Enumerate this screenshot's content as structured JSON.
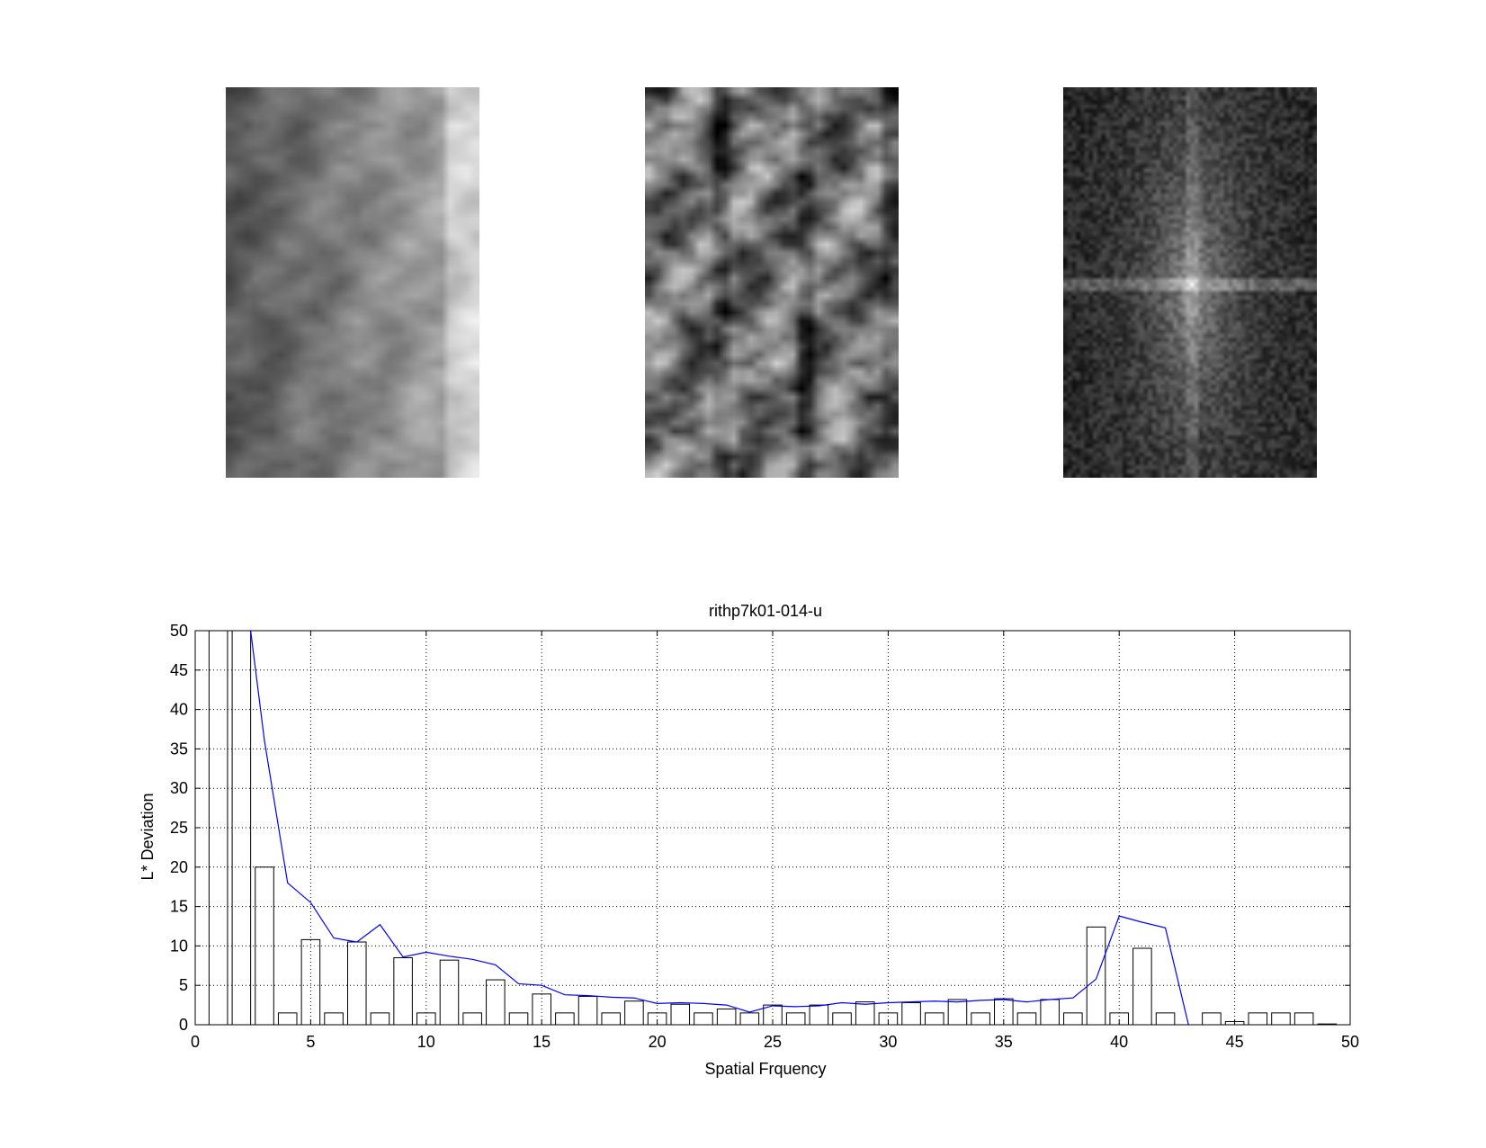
{
  "images": [
    {
      "name": "spatial-pattern",
      "colormap": "gray",
      "style": "medium-contrast"
    },
    {
      "name": "enhanced-pattern",
      "colormap": "gray",
      "style": "high-contrast"
    },
    {
      "name": "fft-magnitude",
      "colormap": "gray",
      "style": "spectrum"
    }
  ],
  "chart_data": {
    "type": "bar",
    "title": "rithp7k01-014-u",
    "xlabel": "Spatial Frquency",
    "ylabel": "L* Deviation",
    "xlim": [
      0,
      50
    ],
    "ylim": [
      0,
      50
    ],
    "xticks": [
      0,
      5,
      10,
      15,
      20,
      25,
      30,
      35,
      40,
      45,
      50
    ],
    "yticks": [
      0,
      5,
      10,
      15,
      20,
      25,
      30,
      35,
      40,
      45,
      50
    ],
    "grid": true,
    "bar_x": [
      1,
      2,
      3,
      4,
      5,
      6,
      7,
      8,
      9,
      10,
      11,
      12,
      13,
      14,
      15,
      16,
      17,
      18,
      19,
      20,
      21,
      22,
      23,
      24,
      25,
      26,
      27,
      28,
      29,
      30,
      31,
      32,
      33,
      34,
      35,
      36,
      37,
      38,
      39,
      40,
      41,
      42,
      43,
      44,
      45,
      46,
      47,
      48,
      49
    ],
    "bar_values": [
      300,
      200,
      20,
      1.5,
      10.8,
      1.5,
      10.5,
      1.5,
      8.5,
      1.5,
      8.2,
      1.5,
      5.7,
      1.5,
      3.9,
      1.5,
      3.6,
      1.5,
      3,
      1.5,
      2.6,
      1.5,
      2,
      1.5,
      2.5,
      1.5,
      2.5,
      1.5,
      2.9,
      1.5,
      2.8,
      1.5,
      3.2,
      1.5,
      3.3,
      1.5,
      3.2,
      1.5,
      12.4,
      1.5,
      9.7,
      1.5,
      0,
      1.5,
      0.4,
      1.5,
      1.5,
      1.5,
      0.1
    ],
    "bar_width": 0.8,
    "series": [
      {
        "color": "#0000ff",
        "x": [
          2.4,
          3,
          4,
          5,
          6,
          7,
          8,
          9,
          10,
          11,
          12,
          13,
          14,
          15,
          16,
          17,
          18,
          19,
          20,
          21,
          22,
          23,
          24,
          25,
          26,
          27,
          28,
          29,
          30,
          31,
          32,
          33,
          34,
          35,
          36,
          37,
          38,
          39,
          40,
          41,
          42,
          43
        ],
        "y": [
          50,
          36,
          18,
          15.5,
          11,
          10.5,
          12.7,
          8.6,
          9.2,
          8.7,
          8.3,
          7.6,
          5.2,
          5,
          3.8,
          3.7,
          3.5,
          3.4,
          2.7,
          2.8,
          2.7,
          2.5,
          1.6,
          2.4,
          2.3,
          2.4,
          2.8,
          2.6,
          2.8,
          2.9,
          3,
          2.9,
          3.1,
          3.2,
          2.9,
          3.2,
          3.4,
          5.8,
          13.8,
          13,
          12.3,
          0
        ]
      }
    ]
  }
}
